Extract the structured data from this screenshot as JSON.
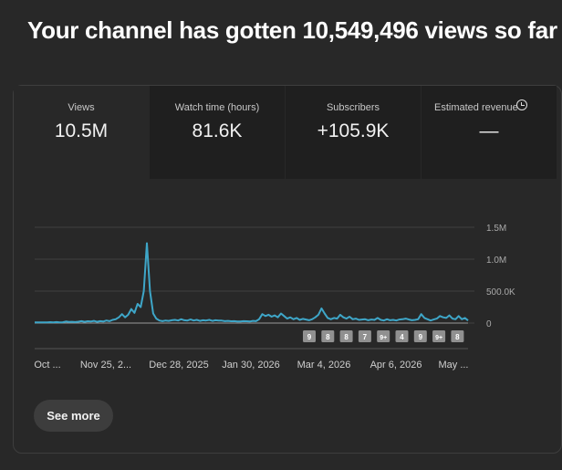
{
  "headline": "Your channel has gotten 10,549,496 views so far",
  "metrics": [
    {
      "label": "Views",
      "value": "10.5M"
    },
    {
      "label": "Watch time (hours)",
      "value": "81.6K"
    },
    {
      "label": "Subscribers",
      "value": "+105.9K"
    },
    {
      "label": "Estimated revenue",
      "value": "—"
    }
  ],
  "colors": {
    "line": "#3ea6c8",
    "marker": "#909090"
  },
  "chart_data": {
    "type": "line",
    "y_ticks": [
      "1.5M",
      "1.0M",
      "500.0K",
      "0"
    ],
    "ylim": [
      0,
      1500000
    ],
    "x_labels": [
      "Oct ...",
      "Nov 25, 2...",
      "Dec 28, 2025",
      "Jan 30, 2026",
      "Mar 4, 2026",
      "Apr 6, 2026",
      "May ..."
    ],
    "grid": true,
    "series": [
      {
        "values": [
          10000,
          11000,
          12000,
          10000,
          11000,
          14000,
          12000,
          15000,
          11000,
          13000,
          25000,
          18000,
          20000,
          15000,
          22000,
          30000,
          20000,
          28000,
          25000,
          35000,
          20000,
          30000,
          25000,
          40000,
          30000,
          50000,
          60000,
          90000,
          140000,
          90000,
          130000,
          220000,
          160000,
          300000,
          250000,
          500000,
          1250000,
          500000,
          150000,
          70000,
          40000,
          30000,
          40000,
          35000,
          45000,
          50000,
          40000,
          60000,
          45000,
          40000,
          55000,
          40000,
          50000,
          35000,
          45000,
          40000,
          50000,
          35000,
          45000,
          40000,
          38000,
          30000,
          35000,
          28000,
          30000,
          25000,
          25000,
          30000,
          28000,
          25000,
          35000,
          30000,
          60000,
          140000,
          110000,
          130000,
          100000,
          120000,
          90000,
          150000,
          110000,
          70000,
          90000,
          60000,
          80000,
          50000,
          65000,
          55000,
          45000,
          60000,
          90000,
          130000,
          230000,
          150000,
          80000,
          60000,
          80000,
          70000,
          130000,
          90000,
          70000,
          100000,
          60000,
          70000,
          50000,
          55000,
          60000,
          45000,
          55000,
          50000,
          80000,
          50000,
          40000,
          60000,
          45000,
          50000,
          40000,
          55000,
          60000,
          70000,
          55000,
          45000,
          50000,
          60000,
          140000,
          80000,
          60000,
          40000,
          55000,
          70000,
          110000,
          90000,
          80000,
          120000,
          70000,
          60000,
          110000,
          60000,
          80000,
          40000
        ]
      }
    ],
    "markers": [
      "9",
      "8",
      "8",
      "7",
      "9+",
      "4",
      "9",
      "9+",
      "8"
    ]
  },
  "see_more_label": "See more"
}
